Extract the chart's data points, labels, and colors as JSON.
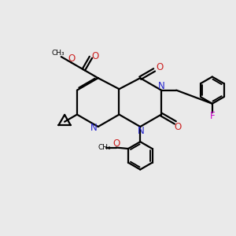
{
  "bg_color": "#eaeaea",
  "bond_color": "#000000",
  "n_color": "#2222cc",
  "o_color": "#cc2222",
  "f_color": "#cc00cc",
  "line_width": 1.6,
  "dbo": 0.055,
  "xlim": [
    0,
    10
  ],
  "ylim": [
    0,
    10
  ]
}
